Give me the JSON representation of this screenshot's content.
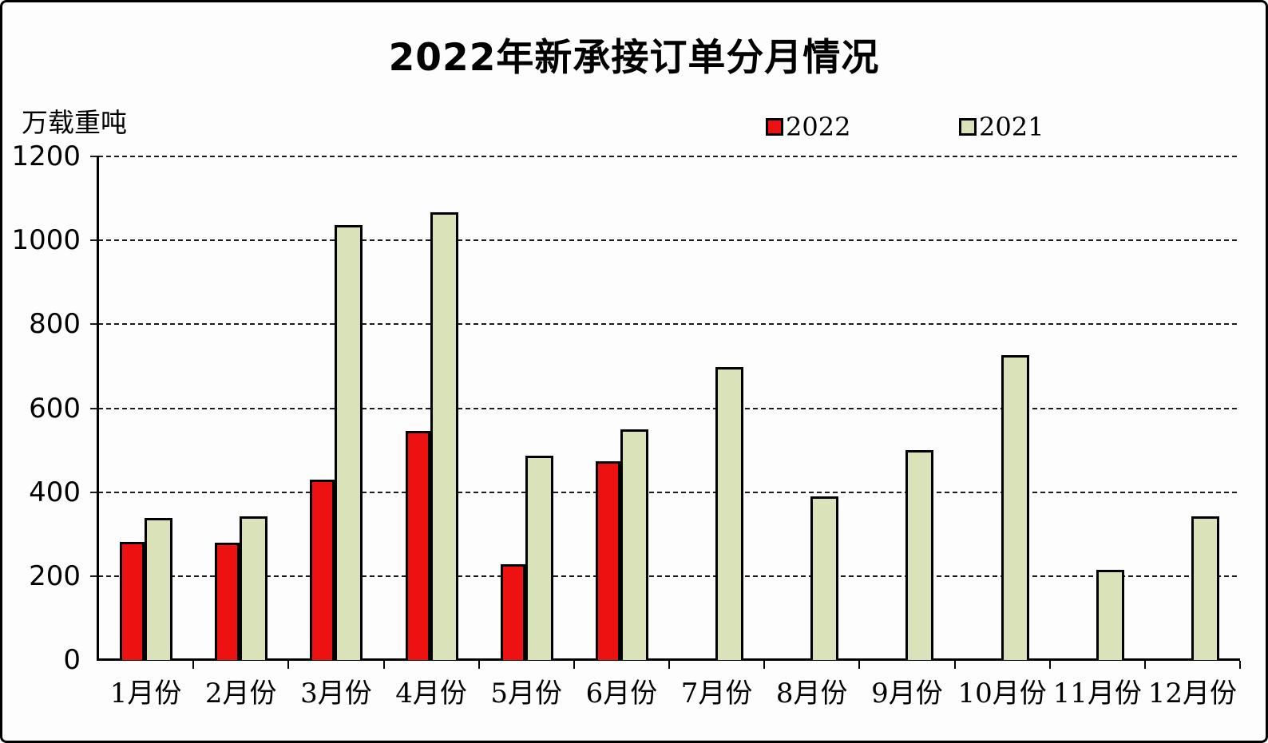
{
  "chart_data": {
    "type": "bar",
    "title": "2022年新承接订单分月情况",
    "unit_label": "万载重吨",
    "ylabel": "万载重吨",
    "xlabel": "",
    "categories": [
      "1月份",
      "2月份",
      "3月份",
      "4月份",
      "5月份",
      "6月份",
      "7月份",
      "8月份",
      "9月份",
      "10月份",
      "11月份",
      "12月份"
    ],
    "series": [
      {
        "name": "2022",
        "color": "#ee1111",
        "values": [
          282,
          280,
          430,
          546,
          228,
          474,
          null,
          null,
          null,
          null,
          null,
          null
        ]
      },
      {
        "name": "2021",
        "color": "#d9e2b8",
        "values": [
          339,
          343,
          1036,
          1066,
          487,
          549,
          697,
          389,
          501,
          727,
          215,
          342
        ]
      }
    ],
    "ylim": [
      0,
      1200
    ],
    "yticks": [
      0,
      200,
      400,
      600,
      800,
      1000,
      1200
    ],
    "grid": "dashed horizontal lines every 200",
    "legend_position": "top-center",
    "axis_color": "#000000",
    "background_color": "#fdfdfd"
  }
}
